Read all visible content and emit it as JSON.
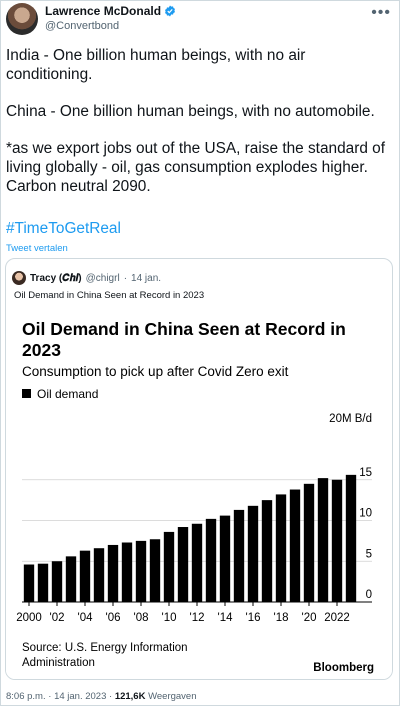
{
  "tweet": {
    "author_name": "Lawrence McDonald",
    "author_handle": "@Convertbond",
    "paragraphs": [
      "India - One billion human beings, with no air conditioning.",
      "China - One billion human beings, with no automobile.",
      "*as we export jobs out of the USA, raise the standard of living globally - oil, gas consumption explodes higher. Carbon neutral 2090."
    ],
    "hashtag": "#TimeToGetReal",
    "translate": "Tweet vertalen",
    "time": "8:06 p.m.",
    "date": "14 jan. 2023",
    "views_count": "121,6K",
    "views_label": "Weergaven"
  },
  "quote": {
    "author_name": "Tracy (𝑪𝒉𝒊)",
    "author_handle": "@chigrl",
    "date": "14 jan.",
    "text": "Oil Demand in China Seen at Record in 2023"
  },
  "chart_data": {
    "type": "bar",
    "title": "Oil Demand in China Seen at Record in 2023",
    "subtitle": "Consumption to pick up after Covid Zero exit",
    "legend": [
      "Oil demand"
    ],
    "unit": "20M B/d",
    "years": [
      2000,
      2001,
      2002,
      2003,
      2004,
      2005,
      2006,
      2007,
      2008,
      2009,
      2010,
      2011,
      2012,
      2013,
      2014,
      2015,
      2016,
      2017,
      2018,
      2019,
      2020,
      2021,
      2022,
      2023
    ],
    "values": [
      4.6,
      4.7,
      5.0,
      5.6,
      6.3,
      6.6,
      7.0,
      7.3,
      7.5,
      7.7,
      8.6,
      9.2,
      9.6,
      10.2,
      10.6,
      11.3,
      11.8,
      12.5,
      13.2,
      13.8,
      14.5,
      15.2,
      15.0,
      15.6
    ],
    "yticks": [
      0,
      5,
      10,
      15
    ],
    "xticks": [
      "2000",
      "'02",
      "'04",
      "'06",
      "'08",
      "'10",
      "'12",
      "'14",
      "'16",
      "'18",
      "'20",
      "2022"
    ],
    "ylim": [
      0,
      20
    ],
    "source": "Source: U.S. Energy Information Administration",
    "brand": "Bloomberg",
    "color": "#000000"
  }
}
